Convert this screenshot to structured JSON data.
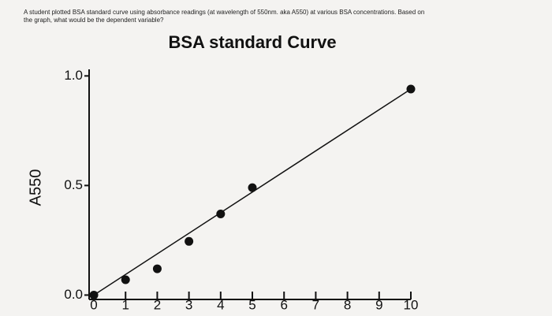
{
  "question": [
    "A student plotted BSA standard curve using absorbance readings (at wavelength of 550nm. aka A550) at various BSA concentrations. Based on",
    "the graph, what would be the dependent variable?"
  ],
  "chart_data": {
    "type": "scatter",
    "title": "BSA standard Curve",
    "y_label": "A550",
    "x": [
      0,
      1,
      2,
      3,
      4,
      5,
      10
    ],
    "values": [
      0,
      0.07,
      0.12,
      0.245,
      0.37,
      0.49,
      0.94
    ],
    "color": "#111111",
    "trendline": {
      "x": [
        0,
        10
      ],
      "values": [
        0,
        0.94
      ]
    },
    "xlim": [
      -0.15,
      10
    ],
    "xticks": [
      0,
      1,
      2,
      3,
      4,
      5,
      6,
      7,
      8,
      9,
      10
    ],
    "ylim": [
      -0.02,
      1.03
    ],
    "yticks": [
      {
        "value": 0,
        "label": "0.0"
      },
      {
        "value": 0.5,
        "label": "0.5"
      },
      {
        "value": 1,
        "label": "1.0"
      }
    ]
  }
}
